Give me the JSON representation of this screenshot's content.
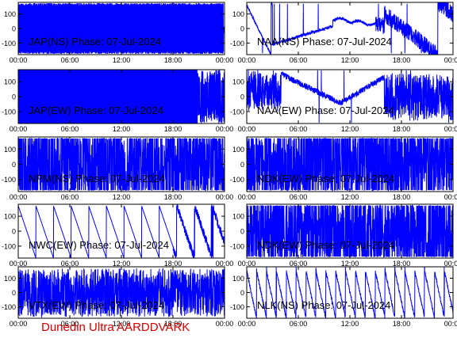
{
  "chart_data": [
    {
      "type": "line",
      "title": "JAP(NS) Phase: 07-Jul-2024",
      "signal": "solid",
      "xlim": [
        0,
        24
      ],
      "ylim": [
        -180,
        180
      ],
      "yticks": [
        100,
        0,
        -100
      ],
      "xticks": [
        "00:00",
        "06:00",
        "12:00",
        "18:00",
        "00:00"
      ]
    },
    {
      "type": "line",
      "title": "NAA(NS) Phase: 07-Jul-2024",
      "signal": "naa_ns",
      "xlim": [
        0,
        24
      ],
      "ylim": [
        -180,
        180
      ],
      "yticks": [
        100,
        0,
        -100
      ],
      "xticks": [
        "00:00",
        "06:00",
        "12:00",
        "18:00",
        "00:00"
      ]
    },
    {
      "type": "line",
      "title": "JAP(EW) Phase: 07-Jul-2024",
      "signal": "solid_then_noise",
      "xlim": [
        0,
        24
      ],
      "ylim": [
        -180,
        180
      ],
      "yticks": [
        100,
        0,
        -100
      ],
      "xticks": [
        "00:00",
        "06:00",
        "12:00",
        "18:00",
        "00:00"
      ]
    },
    {
      "type": "line",
      "title": "NAA(EW) Phase: 07-Jul-2024",
      "signal": "naa_ew",
      "xlim": [
        0,
        24
      ],
      "ylim": [
        -180,
        180
      ],
      "yticks": [
        100,
        0,
        -100
      ],
      "xticks": [
        "00:00",
        "06:00",
        "12:00",
        "18:00",
        "00:00"
      ]
    },
    {
      "type": "line",
      "title": "NPM(NS) Phase: 07-Jul-2024",
      "signal": "noise",
      "xlim": [
        0,
        24
      ],
      "ylim": [
        -180,
        180
      ],
      "yticks": [
        100,
        0,
        -100
      ],
      "xticks": [
        "00:00",
        "06:00",
        "12:00",
        "18:00",
        "00:00"
      ]
    },
    {
      "type": "line",
      "title": "NDK(EW) Phase: 07-Jul-2024",
      "signal": "noise",
      "xlim": [
        0,
        24
      ],
      "ylim": [
        -180,
        180
      ],
      "yticks": [
        100,
        0,
        -100
      ],
      "xticks": [
        "00:00",
        "06:00",
        "12:00",
        "18:00",
        "00:00"
      ]
    },
    {
      "type": "line",
      "title": "NWC(EW) Phase: 07-Jul-2024",
      "signal": "sawtooth",
      "xlim": [
        0,
        24
      ],
      "ylim": [
        -180,
        180
      ],
      "yticks": [
        100,
        0,
        -100
      ],
      "xticks": [
        "00:00",
        "06:00",
        "12:00",
        "18:00",
        "00:00"
      ]
    },
    {
      "type": "line",
      "title": "NDK(EW) Phase: 07-Jul-2024",
      "signal": "noise",
      "xlim": [
        0,
        24
      ],
      "ylim": [
        -180,
        180
      ],
      "yticks": [
        100,
        0,
        -100
      ],
      "xticks": [
        "00:00",
        "06:00",
        "12:00",
        "18:00",
        "00:00"
      ]
    },
    {
      "type": "line",
      "title": "VTX(EW) Phase: 07-Jul-2024",
      "signal": "noise_dense",
      "xlim": [
        0,
        24
      ],
      "ylim": [
        -180,
        180
      ],
      "yticks": [
        100,
        0,
        -100
      ],
      "xticks": [
        "00:00",
        "06:00",
        "12:00",
        "18:00",
        "00:00"
      ]
    },
    {
      "type": "line",
      "title": "NLK(NS) Phase: 07-Jul-2024",
      "signal": "sawtooth_fast",
      "xlim": [
        0,
        24
      ],
      "ylim": [
        -180,
        180
      ],
      "yticks": [
        100,
        0,
        -100
      ],
      "xticks": [
        "00:00",
        "06:00",
        "12:00",
        "18:00",
        "00:00"
      ]
    }
  ],
  "footer": "Dunedin Ultra AARDDVARK",
  "colors": {
    "trace": "#0000ff",
    "footer": "#d40000",
    "axis": "#000000"
  }
}
